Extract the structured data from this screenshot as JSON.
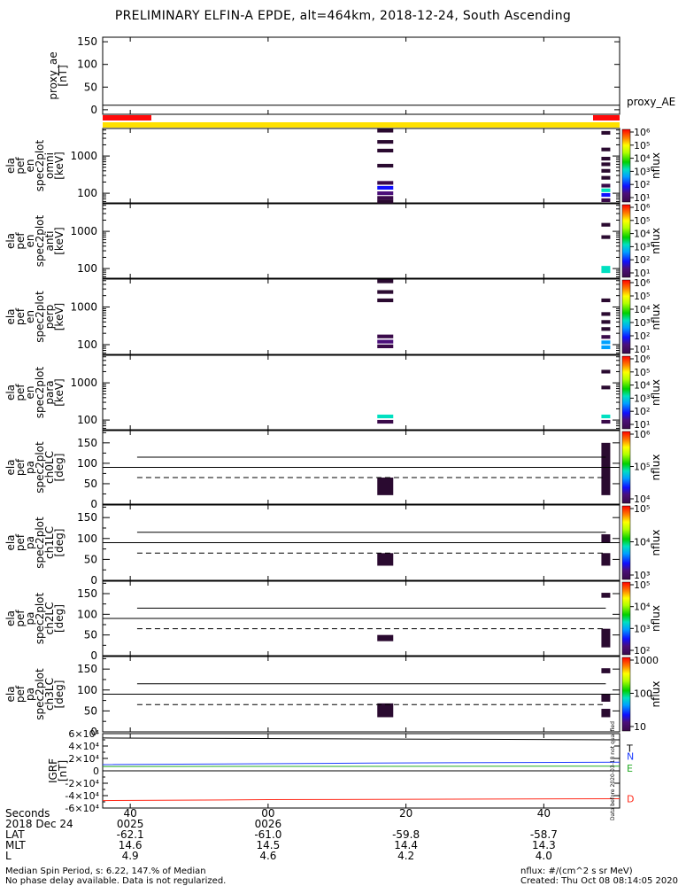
{
  "title": "PRELIMINARY ELFIN-A EPDE, alt=464km, 2018-12-24, South Ascending",
  "footer": {
    "left_line1": "Median Spin Period, s: 6.22, 147.% of Median",
    "left_line2": "No phase delay available. Data is not regularized.",
    "right_line1": "nflux: #/(cm^2 s sr MeV)",
    "right_line2": "Created: Thu Oct 08 08:14:05 2020"
  },
  "xaxis": {
    "rows": [
      {
        "label": "Seconds",
        "values": [
          "40",
          "00",
          "20",
          "40"
        ]
      },
      {
        "label": "2018 Dec 24",
        "values": [
          "0025",
          "0026",
          "",
          ""
        ]
      },
      {
        "label": "LAT",
        "values": [
          "-62.1",
          "-61.0",
          "-59.8",
          "-58.7"
        ]
      },
      {
        "label": "MLT",
        "values": [
          "14.6",
          "14.5",
          "14.4",
          "14.3"
        ]
      },
      {
        "label": "L",
        "values": [
          "4.9",
          "4.6",
          "4.2",
          "4.0"
        ]
      }
    ],
    "tick_seconds": [
      40,
      60,
      80,
      100
    ],
    "range_seconds": [
      36,
      111
    ]
  },
  "chart_data": [
    {
      "type": "line",
      "panel": "proxy_ae",
      "ylabel_lines": [
        "proxy_ae",
        "[nT]"
      ],
      "ylim": [
        -10,
        160
      ],
      "yticks": [
        0,
        50,
        100,
        150
      ],
      "yticklabels": [
        "0",
        "50",
        "100",
        "150"
      ],
      "series": [
        {
          "name": "proxy_AE",
          "x": [
            36,
            111
          ],
          "y": [
            10,
            10
          ]
        }
      ]
    },
    {
      "type": "heatmap",
      "panel": "omni",
      "ylabel_lines": [
        "ela",
        "pef",
        "en",
        "spec2plot",
        "omni",
        "[keV]"
      ],
      "yscale": "log",
      "yticklabels": [
        "100",
        "1000"
      ],
      "colorbar_label": "nflux",
      "colorbar_ticks": [
        "10¹",
        "10²",
        "10³",
        "10⁴",
        "10⁵",
        "10⁶"
      ],
      "cells": [
        {
          "x": 77,
          "e": 60,
          "level": 0.05
        },
        {
          "x": 77,
          "e": 75,
          "level": 0.1
        },
        {
          "x": 77,
          "e": 100,
          "level": 0.2
        },
        {
          "x": 77,
          "e": 140,
          "level": 0.25
        },
        {
          "x": 77,
          "e": 190,
          "level": 0.1
        },
        {
          "x": 77,
          "e": 550,
          "level": 0.05
        },
        {
          "x": 77,
          "e": 1400,
          "level": 0.05
        },
        {
          "x": 77,
          "e": 2400,
          "level": 0.05
        },
        {
          "x": 77,
          "e": 4800,
          "level": 0.05
        },
        {
          "x": 109,
          "e": 65,
          "level": 0.1
        },
        {
          "x": 109,
          "e": 90,
          "level": 0.3
        },
        {
          "x": 109,
          "e": 120,
          "level": 0.45
        },
        {
          "x": 109,
          "e": 160,
          "level": 0.1
        },
        {
          "x": 109,
          "e": 260,
          "level": 0.05
        },
        {
          "x": 109,
          "e": 400,
          "level": 0.05
        },
        {
          "x": 109,
          "e": 600,
          "level": 0.05
        },
        {
          "x": 109,
          "e": 850,
          "level": 0.05
        },
        {
          "x": 109,
          "e": 1500,
          "level": 0.05
        },
        {
          "x": 109,
          "e": 4200,
          "level": 0.05
        }
      ]
    },
    {
      "type": "heatmap",
      "panel": "anti",
      "ylabel_lines": [
        "ela",
        "pef",
        "en",
        "spec2plot",
        "anti",
        "[keV]"
      ],
      "yscale": "log",
      "yticklabels": [
        "100",
        "1000"
      ],
      "colorbar_label": "nflux",
      "colorbar_ticks": [
        "10¹",
        "10²",
        "10³",
        "10⁴",
        "10⁵",
        "10⁶"
      ],
      "cells": [
        {
          "x": 109,
          "e": 85,
          "level": 0.45
        },
        {
          "x": 109,
          "e": 105,
          "level": 0.45
        },
        {
          "x": 109,
          "e": 700,
          "level": 0.05
        },
        {
          "x": 109,
          "e": 1500,
          "level": 0.05
        }
      ]
    },
    {
      "type": "heatmap",
      "panel": "perp",
      "ylabel_lines": [
        "ela",
        "pef",
        "en",
        "spec2plot",
        "perp",
        "[keV]"
      ],
      "yscale": "log",
      "yticklabels": [
        "100",
        "1000"
      ],
      "colorbar_label": "nflux",
      "colorbar_ticks": [
        "10¹",
        "10²",
        "10³",
        "10⁴",
        "10⁵",
        "10⁶"
      ],
      "cells": [
        {
          "x": 77,
          "e": 90,
          "level": 0.1
        },
        {
          "x": 77,
          "e": 120,
          "level": 0.2
        },
        {
          "x": 77,
          "e": 165,
          "level": 0.1
        },
        {
          "x": 77,
          "e": 1500,
          "level": 0.05
        },
        {
          "x": 77,
          "e": 2500,
          "level": 0.05
        },
        {
          "x": 77,
          "e": 4800,
          "level": 0.05
        },
        {
          "x": 109,
          "e": 85,
          "level": 0.4
        },
        {
          "x": 109,
          "e": 115,
          "level": 0.4
        },
        {
          "x": 109,
          "e": 160,
          "level": 0.1
        },
        {
          "x": 109,
          "e": 260,
          "level": 0.05
        },
        {
          "x": 109,
          "e": 400,
          "level": 0.05
        },
        {
          "x": 109,
          "e": 650,
          "level": 0.05
        },
        {
          "x": 109,
          "e": 1500,
          "level": 0.05
        }
      ]
    },
    {
      "type": "heatmap",
      "panel": "para",
      "ylabel_lines": [
        "ela",
        "pef",
        "en",
        "spec2plot",
        "para",
        "[keV]"
      ],
      "yscale": "log",
      "yticklabels": [
        "100",
        "1000"
      ],
      "colorbar_label": "nflux",
      "colorbar_ticks": [
        "10¹",
        "10²",
        "10³",
        "10⁴",
        "10⁵",
        "10⁶"
      ],
      "cells": [
        {
          "x": 77,
          "e": 90,
          "level": 0.1
        },
        {
          "x": 77,
          "e": 125,
          "level": 0.45
        },
        {
          "x": 109,
          "e": 90,
          "level": 0.1
        },
        {
          "x": 109,
          "e": 125,
          "level": 0.45
        },
        {
          "x": 109,
          "e": 750,
          "level": 0.05
        },
        {
          "x": 109,
          "e": 2000,
          "level": 0.05
        }
      ]
    },
    {
      "type": "heatmap",
      "panel": "ch0LC",
      "ylabel_lines": [
        "ela",
        "pef",
        "pa",
        "spec2plot",
        "ch0LC",
        "[deg]"
      ],
      "ylim": [
        0,
        180
      ],
      "yticklabels": [
        "0",
        "50",
        "100",
        "150"
      ],
      "colorbar_label": "nflux",
      "colorbar_ticks": [
        "10⁴",
        "10⁵",
        "10⁶"
      ],
      "lines": {
        "solid_upper": 115,
        "solid_lower": 90,
        "dashed": 65
      },
      "cells": [
        {
          "x": 77,
          "pa0": 22,
          "pa1": 65,
          "level": 0.05
        },
        {
          "x": 109,
          "pa0": 22,
          "pa1": 150,
          "level": 0.05
        }
      ]
    },
    {
      "type": "heatmap",
      "panel": "ch1LC",
      "ylabel_lines": [
        "ela",
        "pef",
        "pa",
        "spec2plot",
        "ch1LC",
        "[deg]"
      ],
      "ylim": [
        0,
        180
      ],
      "yticklabels": [
        "0",
        "50",
        "100",
        "150"
      ],
      "colorbar_label": "nflux",
      "colorbar_ticks": [
        "10³",
        "10⁴",
        "10⁵"
      ],
      "lines": {
        "solid_upper": 115,
        "solid_lower": 90,
        "dashed": 65
      },
      "cells": [
        {
          "x": 77,
          "pa0": 35,
          "pa1": 65,
          "level": 0.05
        },
        {
          "x": 109,
          "pa0": 35,
          "pa1": 65,
          "level": 0.05
        },
        {
          "x": 109,
          "pa0": 90,
          "pa1": 110,
          "level": 0.05
        }
      ]
    },
    {
      "type": "heatmap",
      "panel": "ch2LC",
      "ylabel_lines": [
        "ela",
        "pef",
        "pa",
        "spec2plot",
        "ch2LC",
        "[deg]"
      ],
      "ylim": [
        0,
        180
      ],
      "yticklabels": [
        "0",
        "50",
        "100",
        "150"
      ],
      "colorbar_label": "nflux",
      "colorbar_ticks": [
        "10²",
        "10³",
        "10⁴",
        "10⁵"
      ],
      "lines": {
        "solid_upper": 115,
        "solid_lower": 90,
        "dashed": 65
      },
      "cells": [
        {
          "x": 77,
          "pa0": 35,
          "pa1": 50,
          "level": 0.05
        },
        {
          "x": 109,
          "pa0": 20,
          "pa1": 65,
          "level": 0.05
        },
        {
          "x": 109,
          "pa0": 140,
          "pa1": 152,
          "level": 0.05
        }
      ]
    },
    {
      "type": "heatmap",
      "panel": "ch3LC",
      "ylabel_lines": [
        "ela",
        "pef",
        "pa",
        "spec2plot",
        "ch3LC",
        "[deg]"
      ],
      "ylim": [
        0,
        180
      ],
      "yticklabels": [
        "0",
        "50",
        "100",
        "150"
      ],
      "colorbar_label": "nflux",
      "colorbar_ticks": [
        "10",
        "100",
        "1000"
      ],
      "lines": {
        "solid_upper": 115,
        "solid_lower": 90,
        "dashed": 65
      },
      "cells": [
        {
          "x": 77,
          "pa0": 35,
          "pa1": 68,
          "level": 0.05
        },
        {
          "x": 109,
          "pa0": 35,
          "pa1": 55,
          "level": 0.05
        },
        {
          "x": 109,
          "pa0": 72,
          "pa1": 90,
          "level": 0.05
        },
        {
          "x": 109,
          "pa0": 140,
          "pa1": 152,
          "level": 0.05
        }
      ]
    },
    {
      "type": "line",
      "panel": "igrf",
      "ylabel_lines": [
        "IGRF",
        "[nT]"
      ],
      "ylim": [
        -60000,
        60000
      ],
      "yticklabels": [
        "-6×10⁴",
        "-4×10⁴",
        "-2×10⁴",
        "0",
        "2×10⁴",
        "4×10⁴",
        "6×10⁴"
      ],
      "legend_labels": [
        "T",
        "N",
        "E",
        "D"
      ],
      "series": [
        {
          "name": "T",
          "color": "#000000",
          "x": [
            36,
            111
          ],
          "y": [
            53000,
            50000
          ]
        },
        {
          "name": "N",
          "color": "#1f3fff",
          "x": [
            36,
            75,
            111
          ],
          "y": [
            10000,
            12500,
            14000
          ]
        },
        {
          "name": "E",
          "color": "#22aa22",
          "x": [
            36,
            111
          ],
          "y": [
            7000,
            7500
          ]
        },
        {
          "name": "D",
          "color": "#ff2a1a",
          "x": [
            36,
            60,
            111
          ],
          "y": [
            -48000,
            -46500,
            -45000
          ]
        }
      ]
    }
  ],
  "legend_text": "proxy_AE",
  "side_note": "Data before 2020-03-18 not qualified",
  "colors": {
    "red_bar": "#ff0a0a",
    "yellow_bar": "#ffe100"
  }
}
